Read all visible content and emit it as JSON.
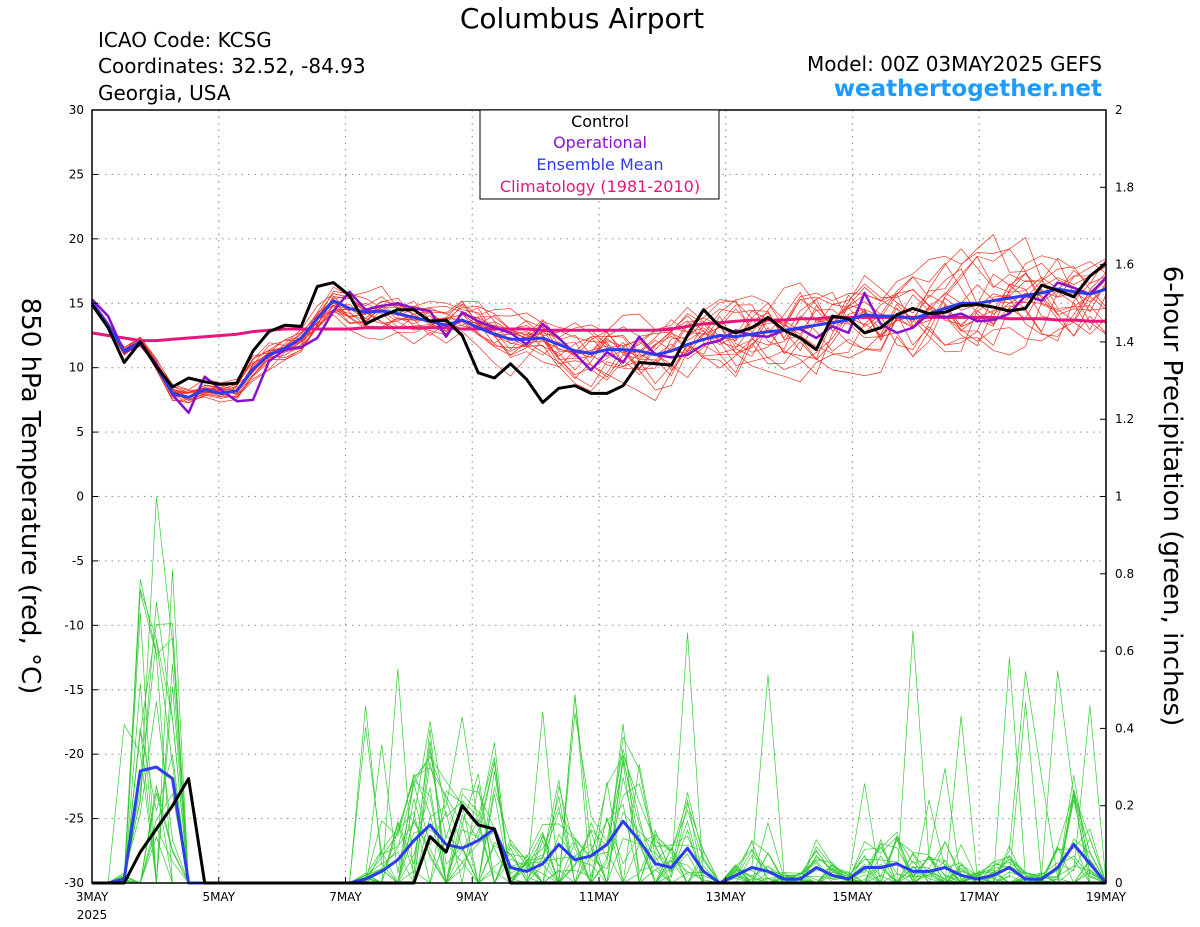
{
  "header": {
    "title": "Columbus Airport",
    "icao": "ICAO Code: KCSG",
    "coords": "Coordinates: 32.52, -84.93",
    "region": "Georgia, USA",
    "model": "Model: 00Z 03MAY2025 GEFS",
    "site": "weathertogether.net"
  },
  "chart_data": {
    "type": "line",
    "ylabel": "850 hPa Temperature (red, °C)",
    "y2label": "6-hour Precipitation (green, inches)",
    "ylim": [
      -30,
      30
    ],
    "y2lim": [
      0,
      2
    ],
    "yticks": [
      30,
      25,
      20,
      15,
      10,
      5,
      0,
      -5,
      -10,
      -15,
      -20,
      -25,
      -30
    ],
    "y2ticks": [
      "2",
      "1.8",
      "1.6",
      "1.4",
      "1.2",
      "1",
      "0.8",
      "0.6",
      "0.4",
      "0.2",
      "0"
    ],
    "xlim": [
      0,
      16
    ],
    "x_unit": "days since 3MAY 00Z",
    "xticks": [
      {
        "x": 0,
        "label": "3MAY",
        "sub": "2025"
      },
      {
        "x": 2,
        "label": "5MAY"
      },
      {
        "x": 4,
        "label": "7MAY"
      },
      {
        "x": 6,
        "label": "9MAY"
      },
      {
        "x": 8,
        "label": "11MAY"
      },
      {
        "x": 10,
        "label": "13MAY"
      },
      {
        "x": 12,
        "label": "15MAY"
      },
      {
        "x": 14,
        "label": "17MAY"
      },
      {
        "x": 16,
        "label": "19MAY"
      }
    ],
    "grid": true,
    "legend": {
      "position": "top-center",
      "entries": [
        {
          "label": "Control",
          "color": "#000000"
        },
        {
          "label": "Operational",
          "color": "#8a10d0"
        },
        {
          "label": "Ensemble Mean",
          "color": "#2e3cf0"
        },
        {
          "label": "Climatology (1981-2010)",
          "color": "#e8157f"
        }
      ]
    },
    "colors": {
      "members_temp": "#ee3124",
      "members_precip": "#33cc33",
      "control": "#000000",
      "operational": "#8a10d0",
      "mean": "#2e3cf0",
      "climatology": "#e8157f"
    },
    "series": [
      {
        "name": "Control",
        "axis": "temp",
        "values": [
          14.9,
          13.1,
          10.4,
          12.0,
          10.1,
          8.5,
          9.2,
          8.9,
          8.7,
          8.8,
          11.3,
          12.8,
          13.3,
          13.2,
          16.3,
          16.6,
          15.6,
          13.4,
          14.0,
          14.5,
          14.5,
          13.6,
          13.7,
          12.5,
          9.6,
          9.2,
          10.3,
          9.1,
          7.3,
          8.4,
          8.6,
          8.0,
          8.0,
          8.6,
          10.4,
          10.3,
          10.2,
          12.5,
          14.5,
          13.2,
          12.7,
          13.1,
          13.9,
          12.9,
          12.3,
          11.4,
          14.0,
          13.8,
          12.7,
          13.1,
          14.1,
          14.6,
          14.2,
          14.3,
          14.8,
          14.9,
          14.7,
          14.4,
          14.6,
          16.4,
          16.0,
          15.5,
          17.1,
          18.1
        ]
      },
      {
        "name": "Operational",
        "axis": "temp",
        "values": [
          15.3,
          14.0,
          11.2,
          11.8,
          10.3,
          7.9,
          6.5,
          9.3,
          8.3,
          7.4,
          7.5,
          10.5,
          11.4,
          11.6,
          12.3,
          14.4,
          15.9,
          14.5,
          14.8,
          15.0,
          14.6,
          14.4,
          12.4,
          14.3,
          13.6,
          13.1,
          12.7,
          11.8,
          13.4,
          12.3,
          11.1,
          9.8,
          11.2,
          10.4,
          12.4,
          11.0,
          10.8,
          11.0,
          11.8,
          12.1,
          12.9,
          12.5,
          12.4,
          12.9,
          13.0,
          12.3,
          13.2,
          12.7,
          15.8,
          13.4,
          12.7,
          13.1,
          14.2,
          13.9,
          14.2,
          13.6,
          13.7,
          14.2,
          15.6,
          15.2,
          16.6,
          16.2,
          15.7,
          17.0
        ]
      },
      {
        "name": "Ensemble Mean",
        "axis": "temp",
        "values": [
          15.1,
          13.3,
          11.3,
          12.0,
          10.1,
          8.0,
          7.7,
          8.3,
          8.0,
          8.2,
          9.9,
          11.0,
          11.5,
          12.3,
          13.8,
          15.2,
          14.6,
          14.3,
          14.4,
          14.2,
          13.9,
          13.6,
          13.3,
          13.7,
          13.1,
          12.6,
          12.2,
          12.2,
          12.3,
          11.8,
          11.3,
          11.1,
          11.4,
          11.4,
          11.3,
          11.0,
          11.3,
          11.8,
          12.2,
          12.5,
          12.4,
          12.6,
          12.8,
          12.9,
          13.1,
          13.3,
          13.5,
          13.7,
          14.1,
          14.0,
          14.0,
          13.8,
          14.2,
          14.6,
          15.0,
          15.0,
          15.2,
          15.4,
          15.6,
          15.8,
          16.1,
          15.9,
          15.7,
          16.1
        ]
      },
      {
        "name": "Climatology (1981-2010)",
        "axis": "temp",
        "values": [
          12.7,
          12.5,
          12.3,
          12.1,
          12.1,
          12.2,
          12.3,
          12.4,
          12.5,
          12.6,
          12.8,
          12.9,
          13.0,
          13.0,
          13.0,
          13.0,
          13.0,
          13.1,
          13.1,
          13.1,
          13.1,
          13.1,
          13.1,
          13.0,
          13.0,
          13.0,
          13.0,
          13.0,
          12.9,
          12.9,
          12.9,
          12.9,
          12.9,
          12.9,
          12.9,
          12.9,
          13.0,
          13.2,
          13.4,
          13.5,
          13.6,
          13.7,
          13.7,
          13.7,
          13.8,
          13.8,
          13.9,
          13.9,
          13.9,
          13.9,
          13.9,
          13.9,
          13.9,
          13.9,
          13.9,
          13.9,
          13.9,
          13.8,
          13.8,
          13.8,
          13.7,
          13.7,
          13.6,
          13.6
        ]
      },
      {
        "name": "Control",
        "axis": "precip",
        "values": [
          0.0,
          0.0,
          0.0,
          0.08,
          0.14,
          0.2,
          0.27,
          0.0,
          0.0,
          0.0,
          0.0,
          0.0,
          0.0,
          0.0,
          0.0,
          0.0,
          0.0,
          0.0,
          0.0,
          0.0,
          0.0,
          0.12,
          0.08,
          0.2,
          0.15,
          0.14,
          0.0,
          0.0,
          0.0,
          0.0,
          0.0,
          0.0,
          0.0,
          0.0,
          0.0,
          0.0,
          0.0,
          0.0,
          0.0,
          0.0,
          0.0,
          0.0,
          0.0,
          0.0,
          0.0,
          0.0,
          0.0,
          0.0,
          0.0,
          0.0,
          0.0,
          0.0,
          0.0,
          0.0,
          0.0,
          0.0,
          0.0,
          0.0,
          0.0,
          0.0,
          0.0,
          0.0,
          0.0,
          0.0
        ]
      },
      {
        "name": "Ensemble Mean",
        "axis": "precip",
        "values": [
          0.0,
          0.0,
          0.01,
          0.29,
          0.3,
          0.27,
          0.0,
          0.0,
          0.0,
          0.0,
          0.0,
          0.0,
          0.0,
          0.0,
          0.0,
          0.0,
          0.0,
          0.01,
          0.03,
          0.06,
          0.11,
          0.15,
          0.1,
          0.09,
          0.11,
          0.14,
          0.04,
          0.03,
          0.05,
          0.1,
          0.06,
          0.07,
          0.1,
          0.16,
          0.11,
          0.05,
          0.04,
          0.09,
          0.03,
          0.0,
          0.02,
          0.04,
          0.03,
          0.01,
          0.01,
          0.04,
          0.02,
          0.01,
          0.04,
          0.04,
          0.05,
          0.03,
          0.03,
          0.04,
          0.02,
          0.01,
          0.02,
          0.04,
          0.01,
          0.01,
          0.04,
          0.1,
          0.05,
          0.0
        ]
      }
    ]
  }
}
